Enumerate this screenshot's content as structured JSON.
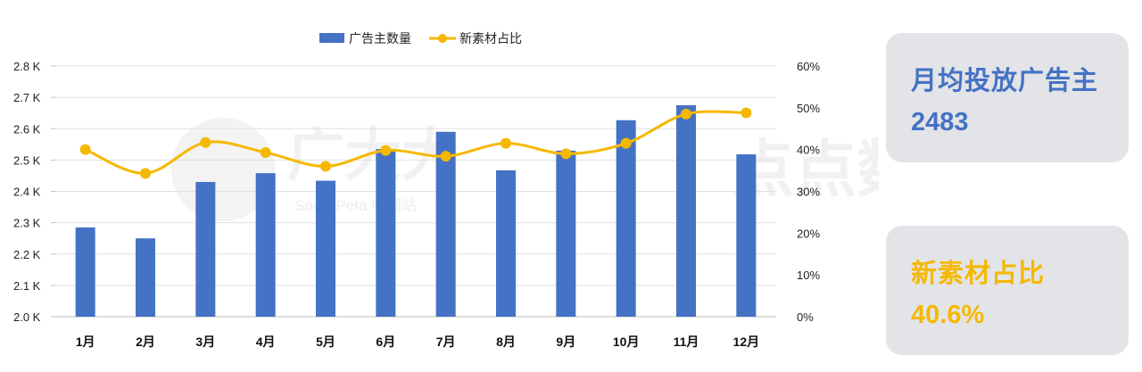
{
  "watermark": {
    "left_text": "广大大",
    "left_subtext": "SocialPeta 中国站",
    "right_text": "点点数据"
  },
  "chart_data": {
    "type": "bar",
    "categories": [
      "1月",
      "2月",
      "3月",
      "4月",
      "5月",
      "6月",
      "7月",
      "8月",
      "9月",
      "10月",
      "11月",
      "12月"
    ],
    "series": [
      {
        "name": "广告主数量",
        "type": "bar",
        "axis": "left",
        "color": "#4472c4",
        "values": [
          2285,
          2250,
          2430,
          2458,
          2434,
          2535,
          2590,
          2467,
          2530,
          2627,
          2675,
          2518
        ]
      },
      {
        "name": "新素材占比",
        "type": "line",
        "axis": "right",
        "color": "#f5b800",
        "values": [
          40.0,
          34.3,
          41.7,
          39.3,
          36.0,
          39.8,
          38.4,
          41.5,
          39.0,
          41.5,
          48.5,
          48.8
        ]
      }
    ],
    "y_left": {
      "ylim": [
        2000,
        2800
      ],
      "ticks": [
        2000,
        2100,
        2200,
        2300,
        2400,
        2500,
        2600,
        2700,
        2800
      ],
      "tick_labels": [
        "2.0 K",
        "2.1 K",
        "2.2 K",
        "2.3 K",
        "2.4 K",
        "2.5 K",
        "2.6 K",
        "2.7 K",
        "2.8 K"
      ]
    },
    "y_right": {
      "ylim": [
        0,
        60
      ],
      "ticks": [
        0,
        10,
        20,
        30,
        40,
        50,
        60
      ],
      "tick_labels": [
        "0%",
        "10%",
        "20%",
        "30%",
        "40%",
        "50%",
        "60%"
      ]
    },
    "grid": true,
    "legend_position": "top-center"
  },
  "cards": {
    "advertisers": {
      "title": "月均投放广告主",
      "value": "2483",
      "color": "#4472c4"
    },
    "new_material": {
      "title": "新素材占比",
      "value": "40.6%",
      "color": "#f5b800"
    }
  }
}
